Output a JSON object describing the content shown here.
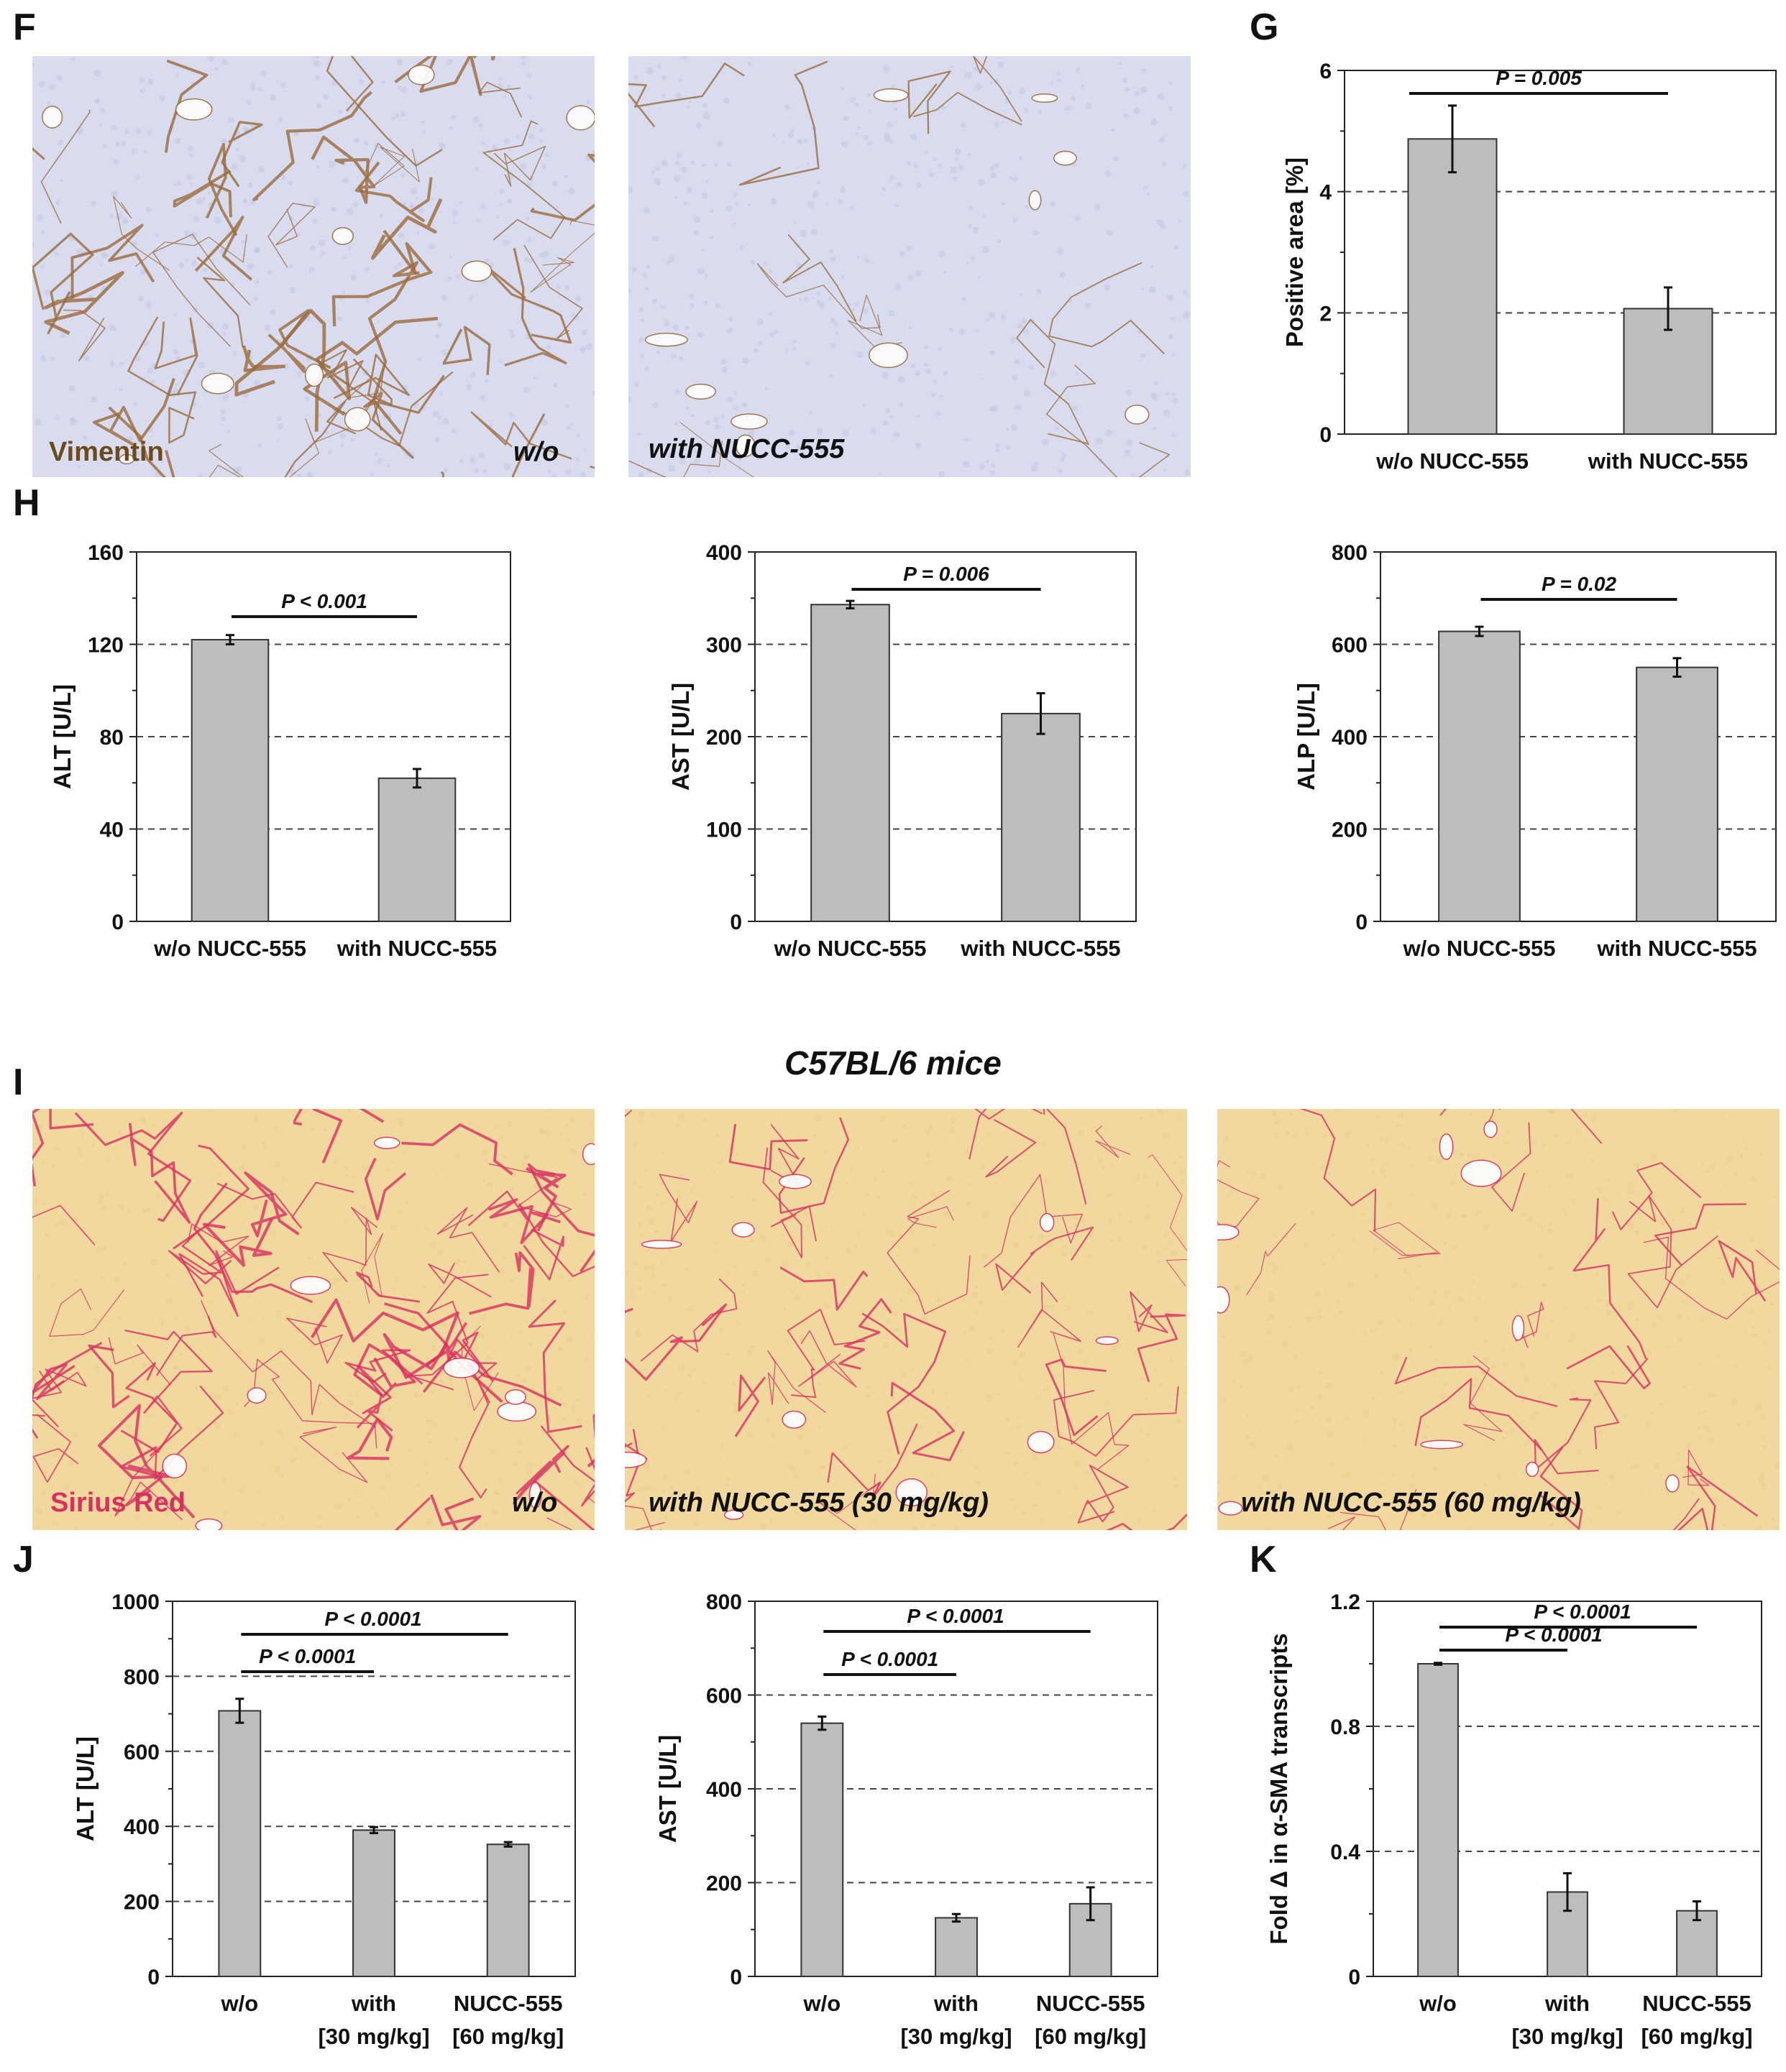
{
  "panels": {
    "F": "F",
    "G": "G",
    "H": "H",
    "I": "I",
    "J": "J",
    "K": "K"
  },
  "micrographs_F": {
    "stain_label": "Vimentin",
    "stain_color": "#6b4a1e",
    "left_label": "w/o",
    "right_label": "with NUCC-555",
    "background": "#d9dcee",
    "stain_tissue_color": "#9a6a3c"
  },
  "section_I_title": "C57BL/6 mice",
  "micrographs_I": {
    "stain_label": "Sirius Red",
    "stain_color": "#d8305f",
    "labels": [
      "w/o",
      "with NUCC-555 (30 mg/kg)",
      "with NUCC-555 (60 mg/kg)"
    ],
    "background": "#f1d89f",
    "fiber_color": "#d8305f"
  },
  "chart_data": [
    {
      "id": "G",
      "type": "bar",
      "categories": [
        "w/o NUCC-555",
        "with NUCC-555"
      ],
      "values": [
        4.87,
        2.07
      ],
      "errors": [
        0.55,
        0.35
      ],
      "ylabel": "Positive area [%]",
      "ylim": [
        0,
        6
      ],
      "yticks": [
        0,
        2,
        4,
        6
      ],
      "grid_dashed": [
        2,
        4
      ],
      "brackets": [
        {
          "from": 0,
          "to": 1,
          "label": "P = 0.005"
        }
      ]
    },
    {
      "id": "H1",
      "type": "bar",
      "categories": [
        "w/o NUCC-555",
        "with NUCC-555"
      ],
      "values": [
        122,
        62
      ],
      "errors": [
        2,
        4
      ],
      "ylabel": "ALT [U/L]",
      "ylim": [
        0,
        160
      ],
      "yticks": [
        0,
        40,
        80,
        120,
        160
      ],
      "grid_dashed": [
        40,
        80,
        120
      ],
      "brackets": [
        {
          "from": 0,
          "to": 1,
          "label": "P < 0.001"
        }
      ]
    },
    {
      "id": "H2",
      "type": "bar",
      "categories": [
        "w/o NUCC-555",
        "with NUCC-555"
      ],
      "values": [
        343,
        225
      ],
      "errors": [
        4,
        22
      ],
      "ylabel": "AST [U/L]",
      "ylim": [
        0,
        400
      ],
      "yticks": [
        0,
        100,
        200,
        300,
        400
      ],
      "grid_dashed": [
        100,
        200,
        300
      ],
      "brackets": [
        {
          "from": 0,
          "to": 1,
          "label": "P = 0.006"
        }
      ]
    },
    {
      "id": "H3",
      "type": "bar",
      "categories": [
        "w/o NUCC-555",
        "with NUCC-555"
      ],
      "values": [
        628,
        550
      ],
      "errors": [
        10,
        20
      ],
      "ylabel": "ALP [U/L]",
      "ylim": [
        0,
        800
      ],
      "yticks": [
        0,
        200,
        400,
        600,
        800
      ],
      "grid_dashed": [
        200,
        400,
        600
      ],
      "brackets": [
        {
          "from": 0,
          "to": 1,
          "label": "P = 0.02"
        }
      ]
    },
    {
      "id": "J1",
      "type": "bar",
      "categories": [
        "w/o",
        "with",
        "NUCC-555"
      ],
      "categories_line2": [
        "",
        "[30 mg/kg]",
        "[60 mg/kg]"
      ],
      "values": [
        708,
        390,
        352
      ],
      "errors": [
        32,
        8,
        6
      ],
      "ylabel": "ALT [U/L]",
      "ylim": [
        0,
        1000
      ],
      "yticks": [
        0,
        200,
        400,
        600,
        800,
        1000
      ],
      "grid_dashed": [
        200,
        400,
        600,
        800
      ],
      "brackets": [
        {
          "from": 0,
          "to": 1,
          "label": "P < 0.0001"
        },
        {
          "from": 0,
          "to": 2,
          "label": "P < 0.0001"
        }
      ]
    },
    {
      "id": "J2",
      "type": "bar",
      "categories": [
        "w/o",
        "with",
        "NUCC-555"
      ],
      "categories_line2": [
        "",
        "[30 mg/kg]",
        "[60 mg/kg]"
      ],
      "values": [
        540,
        125,
        155
      ],
      "errors": [
        14,
        8,
        35
      ],
      "ylabel": "AST [U/L]",
      "ylim": [
        0,
        800
      ],
      "yticks": [
        0,
        200,
        400,
        600,
        800
      ],
      "grid_dashed": [
        200,
        400,
        600
      ],
      "brackets": [
        {
          "from": 0,
          "to": 1,
          "label": "P < 0.0001"
        },
        {
          "from": 0,
          "to": 2,
          "label": "P < 0.0001"
        }
      ]
    },
    {
      "id": "K",
      "type": "bar",
      "categories": [
        "w/o",
        "with",
        "NUCC-555"
      ],
      "categories_line2": [
        "",
        "[30 mg/kg]",
        "[60 mg/kg]"
      ],
      "values": [
        1.0,
        0.27,
        0.21
      ],
      "errors": [
        0.003,
        0.06,
        0.03
      ],
      "ylabel": "Fold Δ in α-SMA transcripts",
      "ylim": [
        0,
        1.2
      ],
      "yticks": [
        0,
        0.4,
        0.8,
        1.2
      ],
      "grid_dashed": [
        0.4,
        0.8
      ],
      "brackets": [
        {
          "from": 0,
          "to": 1,
          "label": "P < 0.0001"
        },
        {
          "from": 0,
          "to": 2,
          "label": "P < 0.0001"
        }
      ]
    }
  ],
  "colors": {
    "bar": "#bdbdbd",
    "bar_stroke": "#333333",
    "axis": "#222222"
  }
}
